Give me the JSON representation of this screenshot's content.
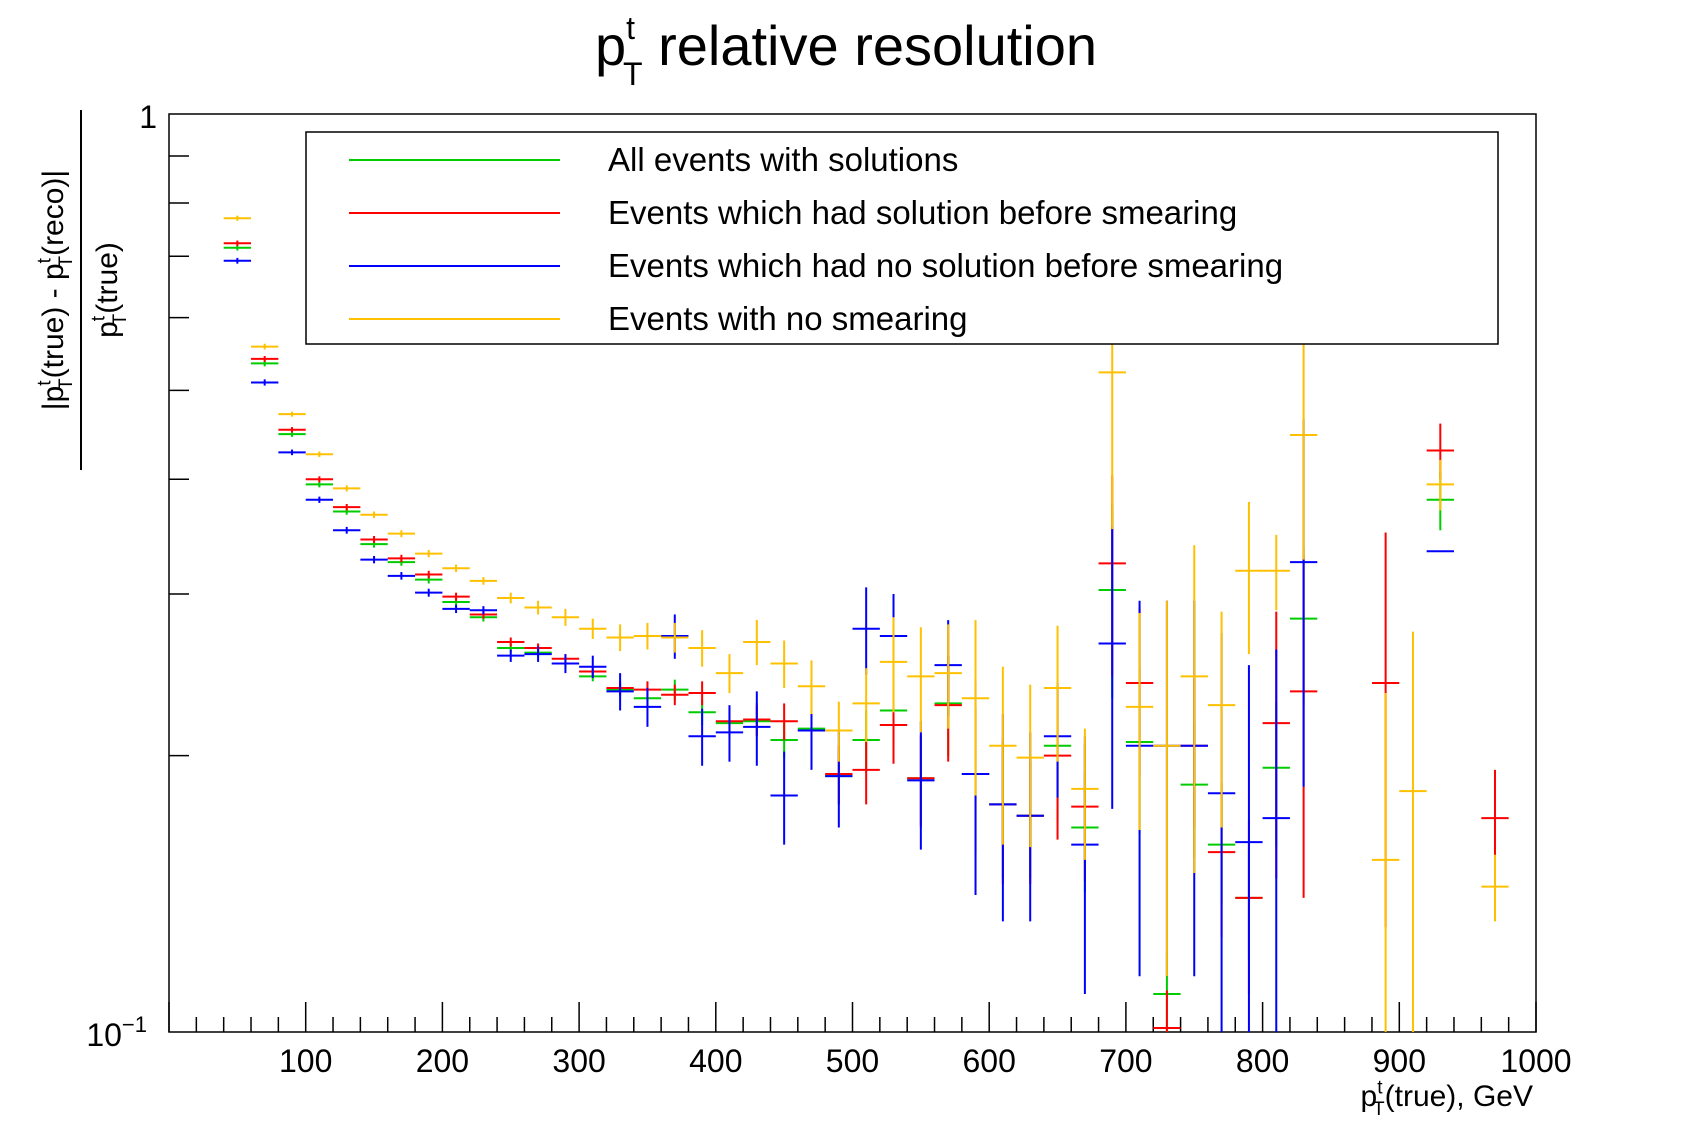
{
  "chart_data": {
    "type": "scatter",
    "title": "p_T^t relative resolution",
    "title_parts": {
      "base": "p",
      "sup": "t",
      "sub": "T",
      "rest": " relative resolution"
    },
    "ylabel": "|p_T^t(true) - p_T^t(reco)| / p_T^t(true)",
    "ylabel_parts": {
      "num": [
        {
          "t": "|p",
          "k": "n"
        },
        {
          "t": "t",
          "k": "sup"
        },
        {
          "t": "T",
          "k": "sub"
        },
        {
          "t": "(true) - p",
          "k": "n"
        },
        {
          "t": "t",
          "k": "sup"
        },
        {
          "t": "T",
          "k": "sub"
        },
        {
          "t": "(reco)|",
          "k": "n"
        }
      ],
      "den": [
        {
          "t": "p",
          "k": "n"
        },
        {
          "t": "t",
          "k": "sup"
        },
        {
          "t": "T",
          "k": "sub"
        },
        {
          "t": "(true)",
          "k": "n"
        }
      ]
    },
    "xlabel": "p_T^t(true),   GeV",
    "xlabel_parts": [
      {
        "t": "p",
        "k": "n"
      },
      {
        "t": "t",
        "k": "sup"
      },
      {
        "t": "T",
        "k": "sub"
      },
      {
        "t": "(true),   GeV",
        "k": "n"
      }
    ],
    "xlim": [
      0,
      1000
    ],
    "ylim": [
      0.1,
      1
    ],
    "yscale": "log",
    "x_ticks": [
      "100",
      "200",
      "300",
      "400",
      "500",
      "600",
      "700",
      "800",
      "900",
      "1000"
    ],
    "y_tick_top": "1",
    "y_tick_bottom": {
      "base": "10",
      "exp": "−1"
    },
    "grid": false,
    "legend_position": "top-center",
    "bin_width": 20,
    "series": [
      {
        "name": "All events with solutions",
        "color": "#00cc00",
        "points": [
          [
            50,
            0.715,
            0.005
          ],
          [
            70,
            0.535,
            0.004
          ],
          [
            90,
            0.448,
            0.003
          ],
          [
            110,
            0.395,
            0.003
          ],
          [
            130,
            0.369,
            0.003
          ],
          [
            150,
            0.34,
            0.003
          ],
          [
            170,
            0.325,
            0.003
          ],
          [
            190,
            0.311,
            0.003
          ],
          [
            210,
            0.294,
            0.003
          ],
          [
            230,
            0.283,
            0.003
          ],
          [
            250,
            0.262,
            0.003
          ],
          [
            270,
            0.259,
            0.003
          ],
          [
            290,
            0.252,
            0.003
          ],
          [
            310,
            0.244,
            0.003
          ],
          [
            330,
            0.236,
            0.004
          ],
          [
            350,
            0.231,
            0.005
          ],
          [
            370,
            0.236,
            0.006
          ],
          [
            390,
            0.223,
            0.007
          ],
          [
            410,
            0.217,
            0.008
          ],
          [
            430,
            0.218,
            0.008
          ],
          [
            450,
            0.208,
            0.009
          ],
          [
            470,
            0.214,
            0.011
          ],
          [
            490,
            0.19,
            0.013
          ],
          [
            510,
            0.208,
            0.016
          ],
          [
            530,
            0.224,
            0.018
          ],
          [
            550,
            0.189,
            0.021
          ],
          [
            570,
            0.228,
            0.028
          ],
          [
            590,
            0.191,
            0.033
          ],
          [
            610,
            0.177,
            0.03
          ],
          [
            630,
            0.172,
            0.025
          ],
          [
            650,
            0.205,
            0.035
          ],
          [
            670,
            0.167,
            0.025
          ],
          [
            690,
            0.303,
            0.072
          ],
          [
            710,
            0.207,
            0.043
          ],
          [
            730,
            0.11,
            0.012
          ],
          [
            750,
            0.186,
            0.031
          ],
          [
            770,
            0.16,
            0.022
          ],
          [
            790,
            0.14,
            0.02
          ],
          [
            810,
            0.194,
            0.035
          ],
          [
            830,
            0.282,
            0.055
          ],
          [
            930,
            0.38,
            0.028
          ]
        ]
      },
      {
        "name": "Events which had solution before smearing",
        "color": "#ff0000",
        "points": [
          [
            50,
            0.723,
            0.005
          ],
          [
            70,
            0.541,
            0.004
          ],
          [
            90,
            0.453,
            0.003
          ],
          [
            110,
            0.4,
            0.003
          ],
          [
            130,
            0.373,
            0.003
          ],
          [
            150,
            0.344,
            0.003
          ],
          [
            170,
            0.328,
            0.003
          ],
          [
            190,
            0.315,
            0.003
          ],
          [
            210,
            0.298,
            0.003
          ],
          [
            230,
            0.285,
            0.003
          ],
          [
            250,
            0.266,
            0.003
          ],
          [
            270,
            0.262,
            0.003
          ],
          [
            290,
            0.255,
            0.003
          ],
          [
            310,
            0.247,
            0.003
          ],
          [
            330,
            0.237,
            0.004
          ],
          [
            350,
            0.236,
            0.005
          ],
          [
            370,
            0.233,
            0.006
          ],
          [
            390,
            0.234,
            0.007
          ],
          [
            410,
            0.218,
            0.008
          ],
          [
            430,
            0.219,
            0.009
          ],
          [
            450,
            0.218,
            0.01
          ],
          [
            470,
            0.213,
            0.012
          ],
          [
            490,
            0.191,
            0.014
          ],
          [
            510,
            0.193,
            0.016
          ],
          [
            530,
            0.216,
            0.02
          ],
          [
            550,
            0.189,
            0.022
          ],
          [
            570,
            0.227,
            0.03
          ],
          [
            590,
            0.191,
            0.035
          ],
          [
            610,
            0.177,
            0.032
          ],
          [
            630,
            0.172,
            0.027
          ],
          [
            650,
            0.2,
            0.038
          ],
          [
            670,
            0.176,
            0.03
          ],
          [
            690,
            0.324,
            0.08
          ],
          [
            710,
            0.24,
            0.05
          ],
          [
            730,
            0.101,
            0.01
          ],
          [
            750,
            0.205,
            0.038
          ],
          [
            770,
            0.157,
            0.03
          ],
          [
            790,
            0.14,
            0.03
          ],
          [
            810,
            0.217,
            0.07
          ],
          [
            830,
            0.235,
            0.095
          ],
          [
            890,
            0.24,
            0.11
          ],
          [
            930,
            0.43,
            0.03
          ],
          [
            970,
            0.171,
            0.022
          ]
        ]
      },
      {
        "name": "Events which had no solution before smearing",
        "color": "#0000ff",
        "points": [
          [
            50,
            0.692,
            0.005
          ],
          [
            70,
            0.51,
            0.004
          ],
          [
            90,
            0.428,
            0.003
          ],
          [
            110,
            0.38,
            0.003
          ],
          [
            130,
            0.352,
            0.003
          ],
          [
            150,
            0.327,
            0.003
          ],
          [
            170,
            0.314,
            0.003
          ],
          [
            190,
            0.301,
            0.003
          ],
          [
            210,
            0.289,
            0.003
          ],
          [
            230,
            0.288,
            0.003
          ],
          [
            250,
            0.257,
            0.004
          ],
          [
            270,
            0.258,
            0.005
          ],
          [
            290,
            0.252,
            0.006
          ],
          [
            310,
            0.25,
            0.007
          ],
          [
            330,
            0.235,
            0.011
          ],
          [
            350,
            0.226,
            0.011
          ],
          [
            370,
            0.27,
            0.015
          ],
          [
            390,
            0.21,
            0.015
          ],
          [
            410,
            0.212,
            0.015
          ],
          [
            430,
            0.215,
            0.02
          ],
          [
            450,
            0.181,
            0.021
          ],
          [
            470,
            0.213,
            0.02
          ],
          [
            490,
            0.19,
            0.023
          ],
          [
            510,
            0.275,
            0.03
          ],
          [
            530,
            0.27,
            0.03
          ],
          [
            550,
            0.188,
            0.03
          ],
          [
            570,
            0.251,
            0.03
          ],
          [
            590,
            0.191,
            0.05
          ],
          [
            610,
            0.177,
            0.045
          ],
          [
            630,
            0.172,
            0.04
          ],
          [
            650,
            0.21,
            0.03
          ],
          [
            670,
            0.16,
            0.05
          ],
          [
            690,
            0.265,
            0.09
          ],
          [
            710,
            0.205,
            0.09
          ],
          [
            730,
            0.205,
            0.09
          ],
          [
            750,
            0.205,
            0.09
          ],
          [
            770,
            0.182,
            0.09
          ],
          [
            790,
            0.161,
            0.09
          ],
          [
            810,
            0.171,
            0.09
          ],
          [
            830,
            0.325,
            0.14
          ],
          [
            930,
            0.334,
            0.0
          ]
        ]
      },
      {
        "name": "Events with no smearing",
        "color": "#ffc000",
        "points": [
          [
            50,
            0.77,
            0.005
          ],
          [
            70,
            0.558,
            0.004
          ],
          [
            90,
            0.471,
            0.003
          ],
          [
            110,
            0.426,
            0.003
          ],
          [
            130,
            0.391,
            0.003
          ],
          [
            150,
            0.366,
            0.003
          ],
          [
            170,
            0.349,
            0.003
          ],
          [
            190,
            0.332,
            0.003
          ],
          [
            210,
            0.32,
            0.003
          ],
          [
            230,
            0.31,
            0.003
          ],
          [
            250,
            0.297,
            0.004
          ],
          [
            270,
            0.29,
            0.005
          ],
          [
            290,
            0.283,
            0.006
          ],
          [
            310,
            0.275,
            0.007
          ],
          [
            330,
            0.269,
            0.009
          ],
          [
            350,
            0.27,
            0.009
          ],
          [
            370,
            0.269,
            0.01
          ],
          [
            390,
            0.262,
            0.012
          ],
          [
            410,
            0.246,
            0.012
          ],
          [
            430,
            0.266,
            0.015
          ],
          [
            450,
            0.252,
            0.015
          ],
          [
            470,
            0.238,
            0.016
          ],
          [
            490,
            0.213,
            0.016
          ],
          [
            510,
            0.228,
            0.021
          ],
          [
            530,
            0.253,
            0.03
          ],
          [
            550,
            0.244,
            0.032
          ],
          [
            570,
            0.246,
            0.032
          ],
          [
            590,
            0.231,
            0.05
          ],
          [
            610,
            0.205,
            0.045
          ],
          [
            630,
            0.199,
            0.04
          ],
          [
            650,
            0.237,
            0.04
          ],
          [
            670,
            0.184,
            0.03
          ],
          [
            690,
            0.523,
            0.17
          ],
          [
            710,
            0.226,
            0.06
          ],
          [
            730,
            0.205,
            0.09
          ],
          [
            750,
            0.244,
            0.095
          ],
          [
            770,
            0.227,
            0.06
          ],
          [
            790,
            0.318,
            0.06
          ],
          [
            810,
            0.318,
            0.03
          ],
          [
            830,
            0.447,
            0.12
          ],
          [
            890,
            0.154,
            0.08
          ],
          [
            910,
            0.183,
            0.09
          ],
          [
            930,
            0.395,
            0.025
          ],
          [
            970,
            0.144,
            0.012
          ]
        ]
      }
    ]
  }
}
